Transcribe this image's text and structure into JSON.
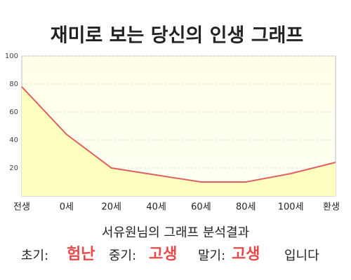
{
  "chart_data": {
    "type": "line",
    "title": "재미로 보는 당신의 인생 그래프",
    "categories": [
      "전생",
      "0세",
      "20세",
      "40세",
      "60세",
      "80세",
      "100세",
      "환생"
    ],
    "values": [
      78,
      44,
      20,
      15,
      10,
      10,
      16,
      24
    ],
    "color": "#e06060",
    "fill": "#ffffc0",
    "ylim": [
      0,
      100
    ],
    "yticks": [
      20,
      40,
      60,
      80,
      100
    ],
    "grid": true
  },
  "result": {
    "heading": "서유원님의 그래프 분석결과",
    "early_label": "초기:",
    "early": "험난",
    "middle_label": "중기:",
    "middle": "고생",
    "late_label": "말기:",
    "late": "고생",
    "ending": "입니다"
  }
}
